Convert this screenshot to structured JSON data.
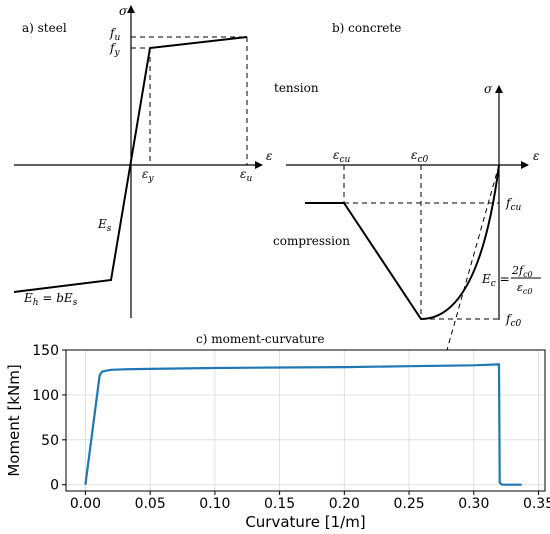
{
  "panels": {
    "steel": {
      "title": "a) steel",
      "y_axis_symbol": "σ",
      "x_axis_symbol": "ε",
      "labels": {
        "fu": "f",
        "fu_sub": "u",
        "fy": "f",
        "fy_sub": "y",
        "eps_y": "ε",
        "eps_y_sub": "y",
        "eps_u": "ε",
        "eps_u_sub": "u",
        "Es": "E",
        "Es_sub": "s",
        "Eh_text": "E",
        "Eh_sub": "h",
        "Eh_rhs": " = bE",
        "Eh_rhs_sub": "s"
      }
    },
    "concrete": {
      "title": "b) concrete",
      "tension_label": "tension",
      "compression_label": "compression",
      "y_axis_symbol": "σ",
      "x_axis_symbol": "ε",
      "labels": {
        "eps_cu": "ε",
        "eps_cu_sub": "cu",
        "eps_c0": "ε",
        "eps_c0_sub": "c0",
        "fcu": "f",
        "fcu_sub": "cu",
        "fc0": "f",
        "fc0_sub": "c0",
        "Ec_lhs": "E",
        "Ec_lhs_sub": "c",
        "Ec_eq": " = ",
        "Ec_num": "2f",
        "Ec_num_sub": "c0",
        "Ec_den": "ε",
        "Ec_den_sub": "c0"
      }
    },
    "moment_curvature": {
      "title": "c) moment-curvature"
    }
  },
  "colors": {
    "series": "#1f77b4",
    "grid": "#d9d9d9",
    "ink": "#000000"
  },
  "chart_data": {
    "type": "line",
    "title": "c) moment-curvature",
    "xlabel": "Curvature [1/m]",
    "ylabel": "Moment [kNm]",
    "xlim": [
      -0.015,
      0.355
    ],
    "ylim": [
      -7,
      150
    ],
    "xticks": [
      0.0,
      0.05,
      0.1,
      0.15,
      0.2,
      0.25,
      0.3,
      0.35
    ],
    "xtick_labels": [
      "0.00",
      "0.05",
      "0.10",
      "0.15",
      "0.20",
      "0.25",
      "0.30",
      "0.35"
    ],
    "yticks": [
      0,
      50,
      100,
      150
    ],
    "ytick_labels": [
      "0",
      "50",
      "100",
      "150"
    ],
    "grid": true,
    "series": [
      {
        "x": [
          0.0,
          0.011,
          0.013,
          0.016,
          0.02,
          0.03,
          0.05,
          0.1,
          0.15,
          0.2,
          0.25,
          0.3,
          0.319,
          0.3195,
          0.32,
          0.322,
          0.337
        ],
        "y": [
          0,
          122,
          126,
          127,
          128,
          128.5,
          129,
          130,
          130.5,
          131,
          132,
          133,
          134,
          134,
          2,
          0,
          0
        ]
      }
    ]
  }
}
